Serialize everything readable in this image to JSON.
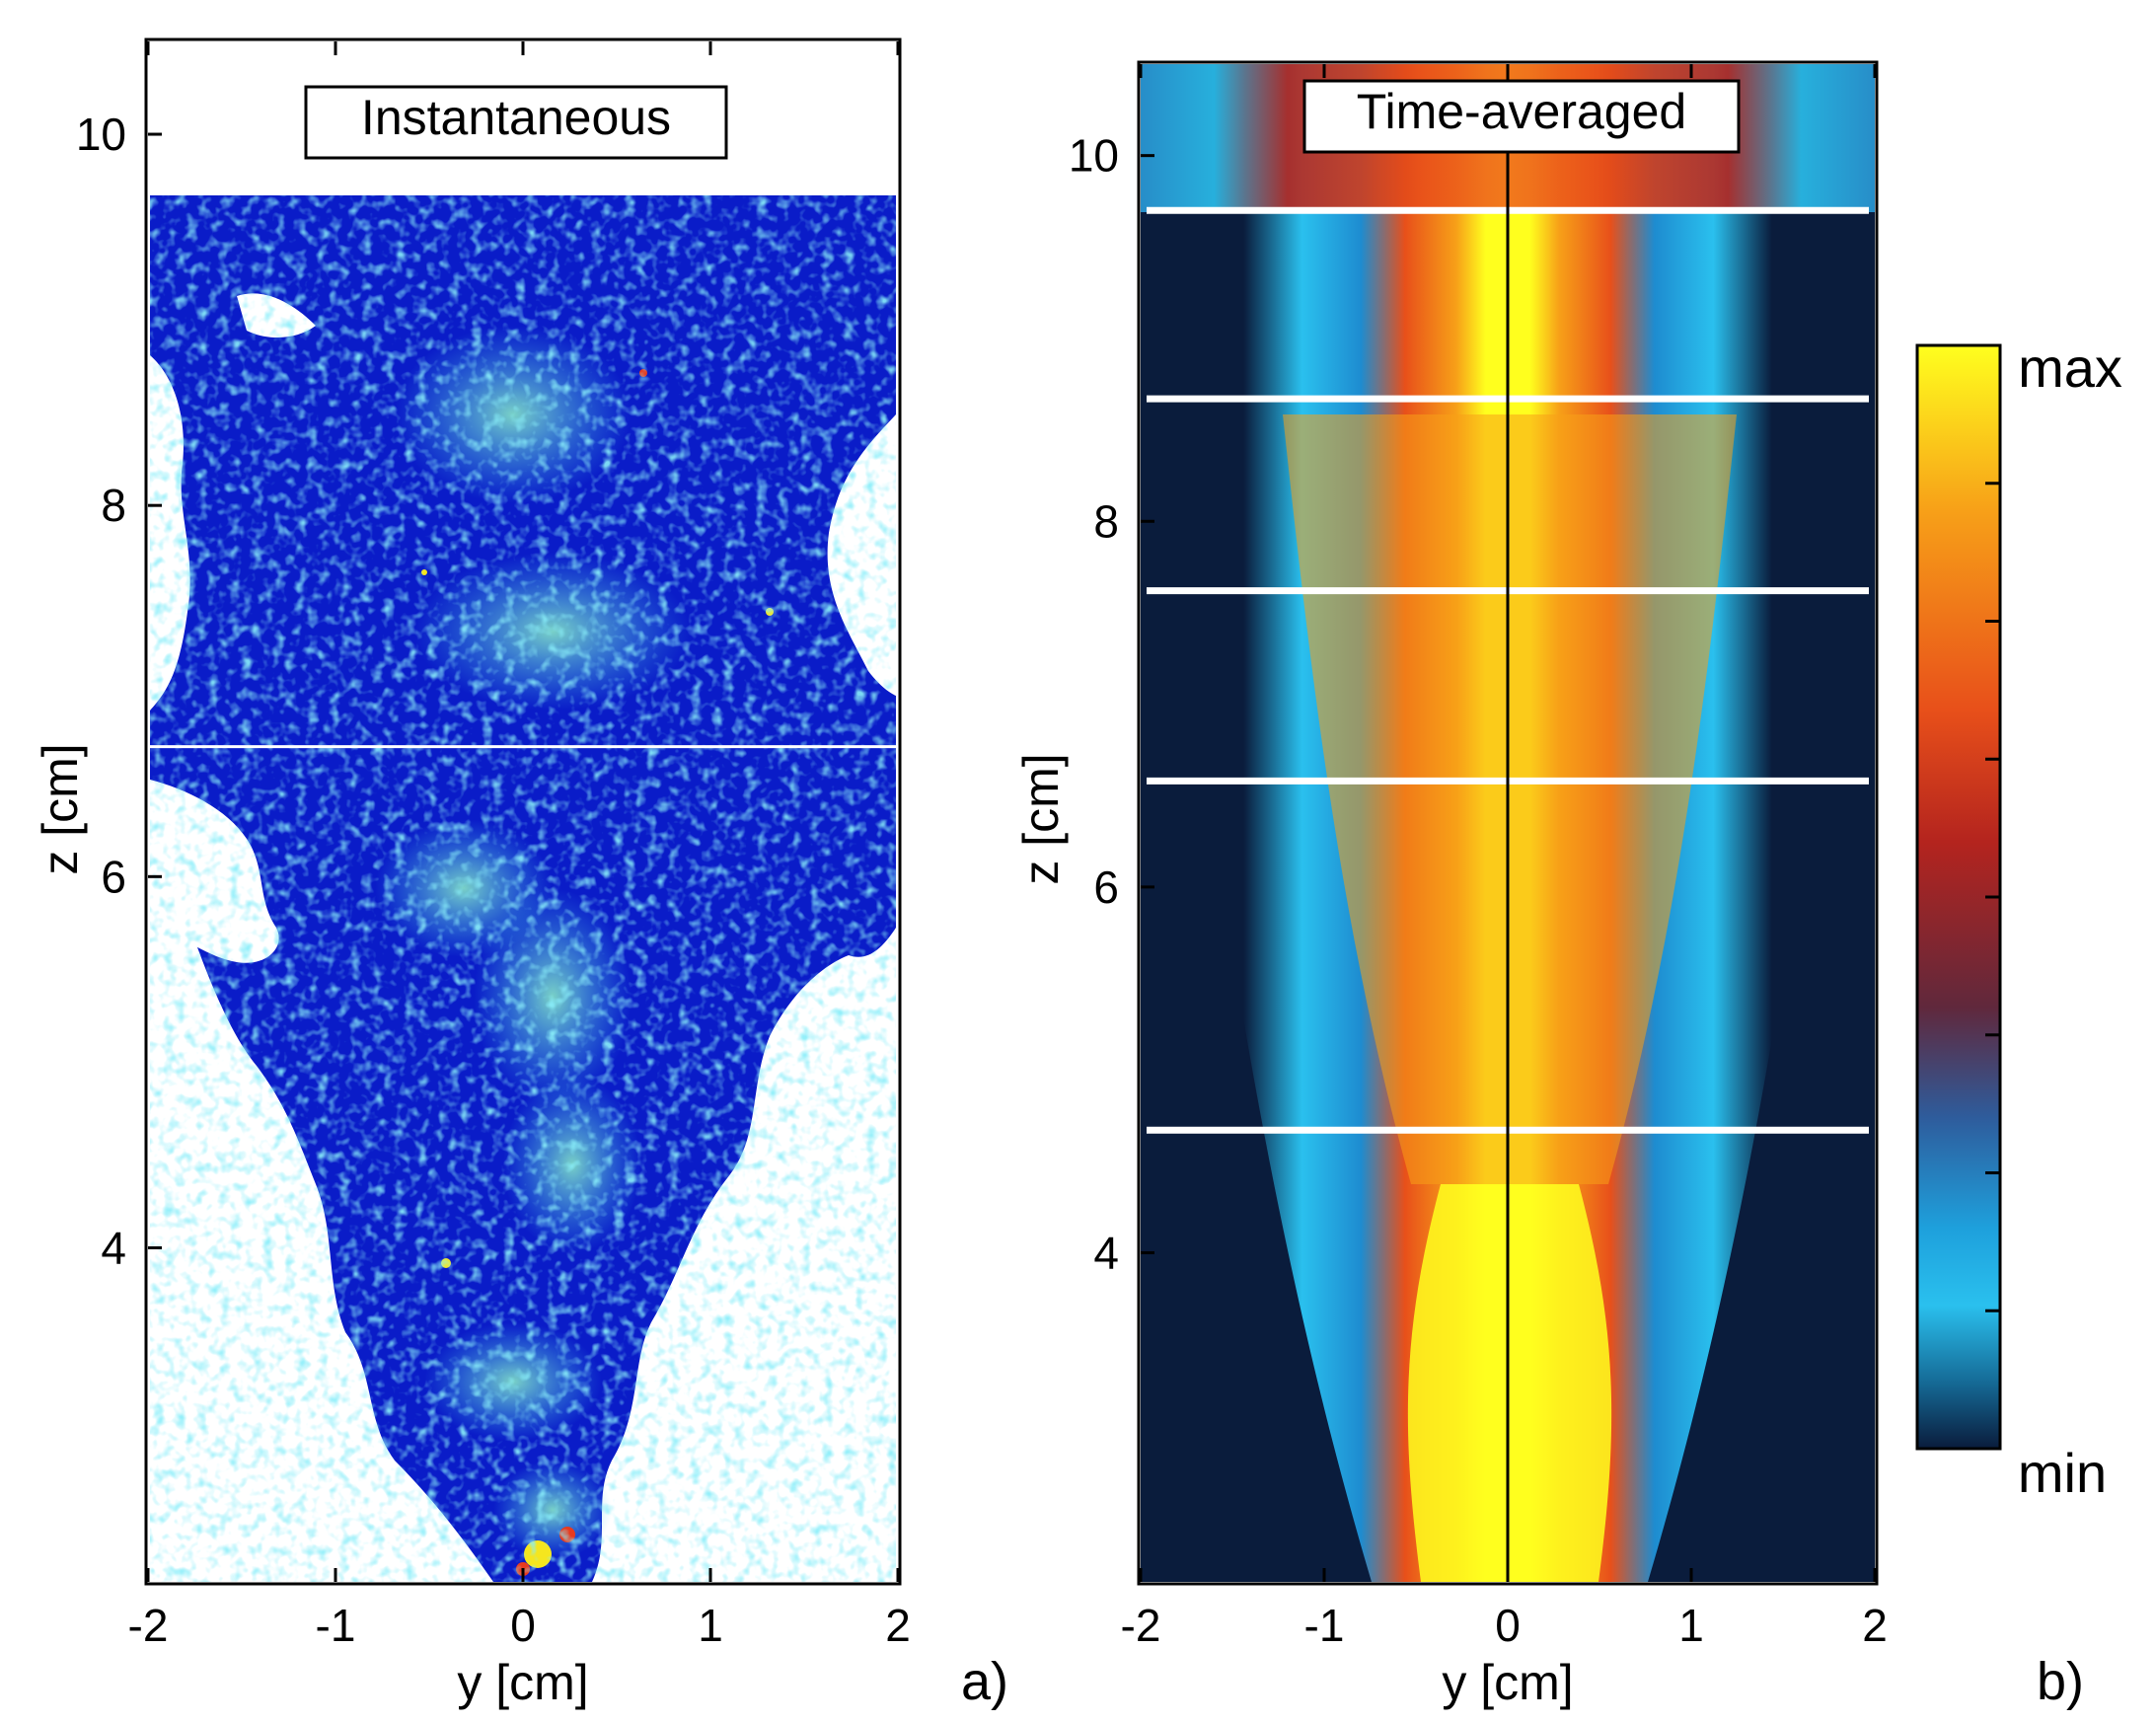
{
  "chart_data": [
    {
      "type": "heatmap",
      "panel": "a)",
      "title": "Instantaneous",
      "xlabel": "y [cm]",
      "ylabel": "z [cm]",
      "xlim": [
        -2,
        2
      ],
      "ylim": [
        2.2,
        10.5
      ],
      "xticks": [
        -2,
        -1,
        0,
        1,
        2
      ],
      "yticks": [
        4,
        6,
        8,
        10
      ],
      "field_top_z": 9.7,
      "seam_lines_z": [
        6.7
      ],
      "colormap": [
        "#0a14b4",
        "#1f4ee8",
        "#3ec2ee",
        "#8cf0c8",
        "#f5e61e",
        "#e83a1e"
      ]
    },
    {
      "type": "heatmap",
      "panel": "b)",
      "title": "Time-averaged",
      "xlabel": "y [cm]",
      "ylabel": "z [cm]",
      "xlim": [
        -2,
        2
      ],
      "ylim": [
        2.2,
        10.5
      ],
      "xticks": [
        -2,
        -1,
        0,
        1,
        2
      ],
      "yticks": [
        4,
        6,
        8,
        10
      ],
      "centerline_y": 0,
      "seam_lines_z": [
        9.7,
        8.67,
        7.62,
        6.58,
        4.67
      ],
      "colorbar": {
        "max_label": "max",
        "min_label": "min",
        "ticks": 7,
        "colors": [
          "#ffff1e",
          "#f7a018",
          "#e8501a",
          "#b4241e",
          "#60283c",
          "#2e5c9c",
          "#1ea0dc",
          "#2ac0ee",
          "#0a1c3c"
        ]
      }
    }
  ]
}
